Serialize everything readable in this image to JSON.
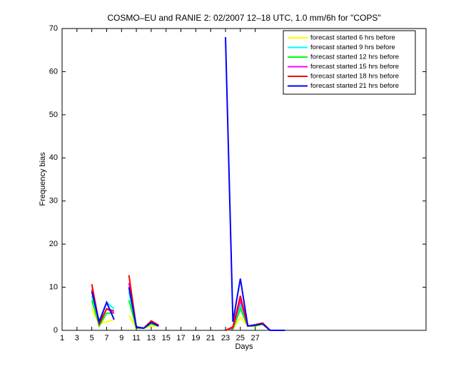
{
  "chart_data": {
    "type": "line",
    "title": "COSMO–EU and RANIE 2: 02/2007 12–18 UTC, 1.0 mm/6h for \"COPS\"",
    "x_label": "Days",
    "y_label": "Frequency bias",
    "x": [
      1,
      2,
      3,
      4,
      5,
      6,
      7,
      8,
      9,
      10,
      11,
      12,
      13,
      14,
      15,
      16,
      17,
      18,
      19,
      20,
      21,
      22,
      23,
      24,
      25,
      26,
      27,
      28,
      29,
      30,
      31
    ],
    "xlim": [
      1,
      50
    ],
    "xticks": [
      1,
      3,
      5,
      7,
      9,
      11,
      13,
      15,
      17,
      19,
      21,
      23,
      25,
      27
    ],
    "ylim": [
      0,
      70
    ],
    "yticks": [
      0,
      10,
      20,
      30,
      40,
      50,
      60,
      70
    ],
    "legend": "upper right",
    "series": [
      {
        "name": "forecast started 6 hrs before",
        "color": "#ffff00",
        "values": [
          null,
          null,
          null,
          null,
          5,
          1.5,
          2,
          2.5,
          null,
          3.5,
          0.5,
          0.5,
          1,
          1,
          null,
          null,
          null,
          null,
          null,
          null,
          null,
          null,
          0,
          0.3,
          3,
          1,
          1,
          1.3,
          0,
          0,
          0
        ]
      },
      {
        "name": "forecast started 9 hrs before",
        "color": "#00ffff",
        "values": [
          null,
          null,
          null,
          null,
          8,
          2,
          6.5,
          5,
          null,
          9,
          0.6,
          0.5,
          1.6,
          1,
          null,
          null,
          null,
          null,
          null,
          null,
          null,
          null,
          0,
          0.4,
          6,
          1,
          1.1,
          1.5,
          0,
          0,
          0
        ]
      },
      {
        "name": "forecast started 12 hrs before",
        "color": "#00ff00",
        "values": [
          null,
          null,
          null,
          null,
          7,
          1,
          4,
          4,
          null,
          7,
          0.5,
          0.5,
          1.5,
          1,
          null,
          null,
          null,
          null,
          null,
          null,
          null,
          null,
          0,
          0.3,
          5,
          1,
          1,
          1.5,
          0,
          0,
          0
        ]
      },
      {
        "name": "forecast started 15 hrs before",
        "color": "#ff00ff",
        "values": [
          null,
          null,
          null,
          null,
          9.5,
          1.5,
          5,
          4,
          null,
          11,
          0.7,
          0.5,
          2,
          1,
          null,
          null,
          null,
          null,
          null,
          null,
          null,
          null,
          0,
          0.5,
          7,
          1,
          1.2,
          1.6,
          0,
          0,
          0
        ]
      },
      {
        "name": "forecast started 18 hrs before",
        "color": "#ff0000",
        "values": [
          null,
          null,
          null,
          null,
          10.7,
          1.5,
          5,
          4.5,
          null,
          12.8,
          0.7,
          0.5,
          2.2,
          1.2,
          null,
          null,
          null,
          null,
          null,
          null,
          null,
          null,
          0,
          0.8,
          8,
          1,
          1.3,
          1.7,
          0,
          0,
          0
        ]
      },
      {
        "name": "forecast started 21 hrs before",
        "color": "#0000ff",
        "values": [
          null,
          null,
          null,
          null,
          9,
          2,
          6.5,
          2.5,
          null,
          10,
          0.8,
          0.5,
          1.8,
          1,
          null,
          null,
          null,
          null,
          null,
          null,
          null,
          null,
          68,
          2,
          12,
          1,
          1.2,
          1.5,
          0,
          0,
          0
        ]
      }
    ]
  }
}
